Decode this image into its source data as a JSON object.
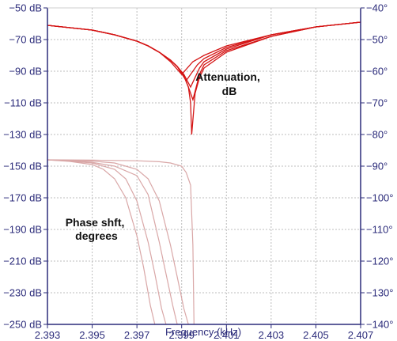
{
  "chart_data": {
    "type": "line",
    "title": "",
    "xlabel": "Frequency (kHz)",
    "ylabel_left": "",
    "ylabel_right": "",
    "xlim": [
      2.393,
      2.407
    ],
    "ylim_left": [
      -250,
      -50
    ],
    "ylim_right": [
      -140,
      -40
    ],
    "grid": true,
    "x_ticks": [
      2.393,
      2.395,
      2.397,
      2.399,
      2.401,
      2.403,
      2.405,
      2.407
    ],
    "x_tick_labels": [
      "2.393",
      "2.395",
      "2.397",
      "2.399",
      "2.401",
      "2.403",
      "2.405",
      "2.407"
    ],
    "y_left_ticks": [
      -50,
      -70,
      -90,
      -110,
      -130,
      -150,
      -170,
      -190,
      -210,
      -230,
      -250
    ],
    "y_left_tick_labels": [
      "−50 dB",
      "−70 dB",
      "−90 dB",
      "−110 dB",
      "−130 dB",
      "−150 dB",
      "−170 dB",
      "−190 dB",
      "−210 dB",
      "−230 dB",
      "−250 dB"
    ],
    "y_right_ticks": [
      -40,
      -50,
      -60,
      -70,
      -80,
      -90,
      -100,
      -110,
      -120,
      -130,
      -140
    ],
    "y_right_tick_labels": [
      "−40°",
      "−50°",
      "−60°",
      "−70°",
      "−80°",
      "−90°",
      "−100°",
      "−110°",
      "−120°",
      "−130°",
      "−140°"
    ],
    "annotations": [
      {
        "lines": [
          "Attenuation,",
          "dB"
        ]
      },
      {
        "lines": [
          "Phase shft,",
          "degrees"
        ]
      }
    ],
    "attenuation_series": [
      {
        "x": [
          2.393,
          2.395,
          2.396,
          2.397,
          2.3975,
          2.398,
          2.3985,
          2.399,
          2.3995,
          2.4,
          2.401,
          2.403,
          2.405,
          2.407
        ],
        "y": [
          -61,
          -64,
          -67,
          -71,
          -74,
          -78,
          -84,
          -92,
          -84,
          -80,
          -74,
          -67,
          -62,
          -59
        ]
      },
      {
        "x": [
          2.393,
          2.395,
          2.396,
          2.397,
          2.3975,
          2.398,
          2.3985,
          2.3988,
          2.3992,
          2.3997,
          2.4,
          2.401,
          2.403,
          2.405,
          2.407
        ],
        "y": [
          -61,
          -64,
          -67,
          -71,
          -74,
          -78,
          -83,
          -87,
          -96,
          -86,
          -82,
          -75,
          -67,
          -62,
          -59
        ]
      },
      {
        "x": [
          2.393,
          2.395,
          2.396,
          2.397,
          2.3975,
          2.398,
          2.3985,
          2.3988,
          2.3991,
          2.3994,
          2.3998,
          2.4,
          2.401,
          2.403,
          2.405,
          2.407
        ],
        "y": [
          -61,
          -64,
          -67,
          -71,
          -74,
          -78,
          -83,
          -87,
          -92,
          -100,
          -88,
          -84,
          -76,
          -67,
          -62,
          -59
        ]
      },
      {
        "x": [
          2.393,
          2.395,
          2.396,
          2.397,
          2.3975,
          2.398,
          2.3985,
          2.3988,
          2.3991,
          2.3993,
          2.3995,
          2.3998,
          2.4,
          2.401,
          2.403,
          2.405,
          2.407
        ],
        "y": [
          -61,
          -64,
          -67,
          -71,
          -74,
          -78,
          -83,
          -87,
          -93,
          -100,
          -108,
          -92,
          -86,
          -77,
          -68,
          -62,
          -59
        ]
      },
      {
        "x": [
          2.393,
          2.395,
          2.396,
          2.397,
          2.3975,
          2.398,
          2.3985,
          2.3988,
          2.3991,
          2.3993,
          2.3994,
          2.39945,
          2.3996,
          2.3998,
          2.4,
          2.401,
          2.403,
          2.405,
          2.407
        ],
        "y": [
          -61,
          -64,
          -67,
          -71,
          -74,
          -78,
          -83,
          -87,
          -93,
          -100,
          -110,
          -130,
          -104,
          -94,
          -88,
          -78,
          -68,
          -62,
          -59
        ]
      }
    ],
    "phase_series": [
      {
        "x": [
          2.393,
          2.394,
          2.395,
          2.3955,
          2.396,
          2.3965,
          2.397,
          2.3973,
          2.3976,
          2.3978
        ],
        "y": [
          -88,
          -88.5,
          -89.5,
          -91,
          -94,
          -100,
          -112,
          -122,
          -134,
          -140
        ]
      },
      {
        "x": [
          2.393,
          2.394,
          2.395,
          2.396,
          2.3965,
          2.397,
          2.3975,
          2.3978,
          2.3981,
          2.3983
        ],
        "y": [
          -88,
          -88.4,
          -89,
          -91,
          -94,
          -101,
          -114,
          -124,
          -135,
          -140
        ]
      },
      {
        "x": [
          2.393,
          2.394,
          2.395,
          2.396,
          2.397,
          2.3975,
          2.398,
          2.3983,
          2.3986,
          2.3988
        ],
        "y": [
          -88,
          -88.3,
          -88.8,
          -90,
          -93,
          -99,
          -114,
          -124,
          -134,
          -140
        ]
      },
      {
        "x": [
          2.393,
          2.395,
          2.396,
          2.397,
          2.3975,
          2.398,
          2.3985,
          2.3988,
          2.3991,
          2.3993
        ],
        "y": [
          -88,
          -88.4,
          -89,
          -91,
          -94,
          -101,
          -115,
          -125,
          -135,
          -140
        ]
      },
      {
        "x": [
          2.393,
          2.395,
          2.397,
          2.398,
          2.3985,
          2.399,
          2.3992,
          2.3994,
          2.3995,
          2.39955
        ],
        "y": [
          -88,
          -88.1,
          -88.3,
          -88.6,
          -89,
          -90,
          -92,
          -96,
          -115,
          -140
        ]
      }
    ],
    "colors": {
      "axis": "#2b2b7a",
      "grid": "#bdbdbd",
      "attenuation": "#d41414",
      "phase": "#d9a7a7"
    }
  }
}
